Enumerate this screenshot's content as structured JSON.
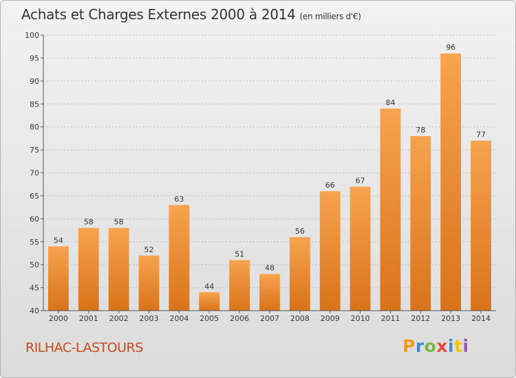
{
  "header": {
    "title": "Achats et Charges Externes 2000 à 2014",
    "subtitle": "(en milliers d'€)"
  },
  "footer": {
    "commune": "RILHAC-LASTOURS",
    "logo_text": "Proxiti",
    "logo_colors": [
      "#f39c12",
      "#3b8fd1",
      "#7ab648",
      "#e74c3c",
      "#3b8fd1",
      "#f1c40f",
      "#9b59b6"
    ]
  },
  "colors": {
    "bar_light": "#f7a34f",
    "bar_dark": "#d9731a",
    "grid": "#bdbdbd",
    "axis": "#555555",
    "text": "#333333",
    "commune": "#c8471d"
  },
  "chart_data": {
    "type": "bar",
    "title": "Achats et Charges Externes 2000 à 2014",
    "subtitle": "(en milliers d'€)",
    "categories": [
      "2000",
      "2001",
      "2002",
      "2003",
      "2004",
      "2005",
      "2006",
      "2007",
      "2008",
      "2009",
      "2010",
      "2011",
      "2012",
      "2013",
      "2014"
    ],
    "values": [
      54,
      58,
      58,
      52,
      63,
      44,
      51,
      48,
      56,
      66,
      67,
      84,
      78,
      96,
      77
    ],
    "ylim": [
      40,
      100
    ],
    "yticks": [
      40,
      45,
      50,
      55,
      60,
      65,
      70,
      75,
      80,
      85,
      90,
      95,
      100
    ],
    "grid": true,
    "data_labels": true
  }
}
